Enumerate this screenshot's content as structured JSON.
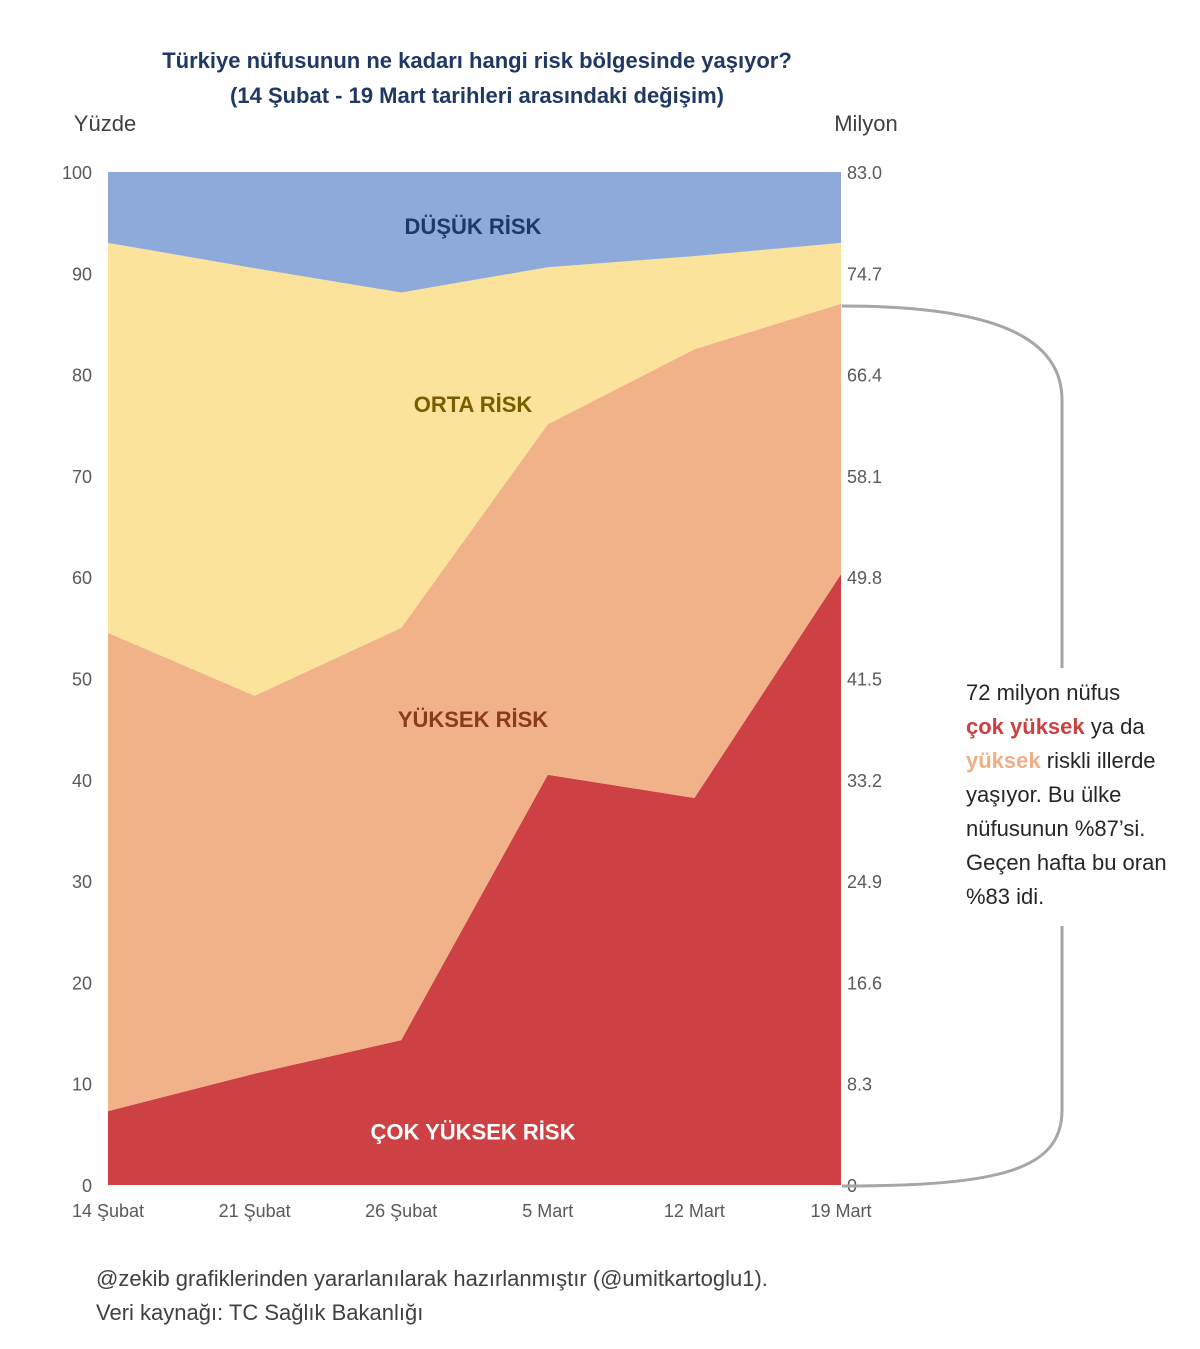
{
  "chart_data": {
    "type": "area",
    "stacked": true,
    "title_line1": "Türkiye nüfusunun ne kadarı hangi risk bölgesinde yaşıyor?",
    "title_line2": "(14 Şubat - 19 Mart tarihleri arasındaki değişim)",
    "ylabel_left": "Yüzde",
    "ylabel_right": "Milyon",
    "categories": [
      "14 Şubat",
      "21 Şubat",
      "26 Şubat",
      "5 Mart",
      "12 Mart",
      "19 Mart"
    ],
    "series": [
      {
        "name": "ÇOK YÜKSEK RİSK",
        "color": "#cd4044",
        "label_color": "#ffffff",
        "values": [
          7.3,
          11.0,
          14.3,
          40.5,
          38.2,
          60.3
        ]
      },
      {
        "name": "YÜKSEK RİSK",
        "color": "#f1b28a",
        "label_color": "#8b3a1a",
        "values": [
          47.2,
          37.3,
          40.7,
          34.6,
          44.3,
          26.7
        ]
      },
      {
        "name": "ORTA RİSK",
        "color": "#fbe39b",
        "label_color": "#7a5d00",
        "values": [
          38.5,
          42.2,
          33.1,
          15.5,
          9.2,
          6.0
        ]
      },
      {
        "name": "DÜŞÜK RİSK",
        "color": "#8eaadb",
        "label_color": "#1f3864",
        "values": [
          7.0,
          9.5,
          11.9,
          9.4,
          8.3,
          7.0
        ]
      }
    ],
    "ylim": [
      0,
      100
    ],
    "yticks_left": [
      "0",
      "10",
      "20",
      "30",
      "40",
      "50",
      "60",
      "70",
      "80",
      "90",
      "100"
    ],
    "yticks_right": [
      "0",
      "8.3",
      "16.6",
      "24.9",
      "33.2",
      "41.5",
      "49.8",
      "58.1",
      "66.4",
      "74.7",
      "83.0"
    ],
    "grid": false,
    "annotation": {
      "part1": "72 milyon nüfus",
      "part2_red": "çok yüksek",
      "part3": " ya da",
      "part4_orange": "yüksek",
      "part5": " riskli illerde yaşıyor. Bu ülke nüfusunun %87’si. Geçen hafta bu oran %83 idi."
    }
  },
  "footer": {
    "line1": "@zekib grafiklerinden yararlanılarak hazırlanmıştır (@umitkartoglu1).",
    "line2": "Veri kaynağı: TC Sağlık Bakanlığı"
  }
}
